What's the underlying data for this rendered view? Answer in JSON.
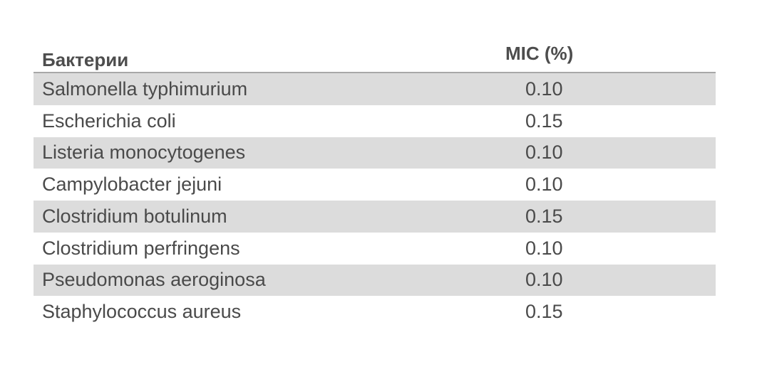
{
  "table": {
    "headers": {
      "bacteria": "Бактерии",
      "mic": "MIC (%)"
    },
    "rows": [
      {
        "name": "Salmonella typhimurium",
        "value": "0.10"
      },
      {
        "name": "Escherichia coli",
        "value": "0.15"
      },
      {
        "name": "Listeria monocytogenes",
        "value": "0.10"
      },
      {
        "name": "Campylobacter jejuni",
        "value": "0.10"
      },
      {
        "name": "Clostridium botulinum",
        "value": "0.15"
      },
      {
        "name": "Clostridium perfringens",
        "value": "0.10"
      },
      {
        "name": "Pseudomonas aeroginosa",
        "value": "0.10"
      },
      {
        "name": "Staphylococcus aureus",
        "value": "0.15"
      }
    ]
  },
  "colors": {
    "row_shade": "#dcdcdc",
    "text": "#4a4a4a",
    "header_rule": "#a8a8a8"
  }
}
